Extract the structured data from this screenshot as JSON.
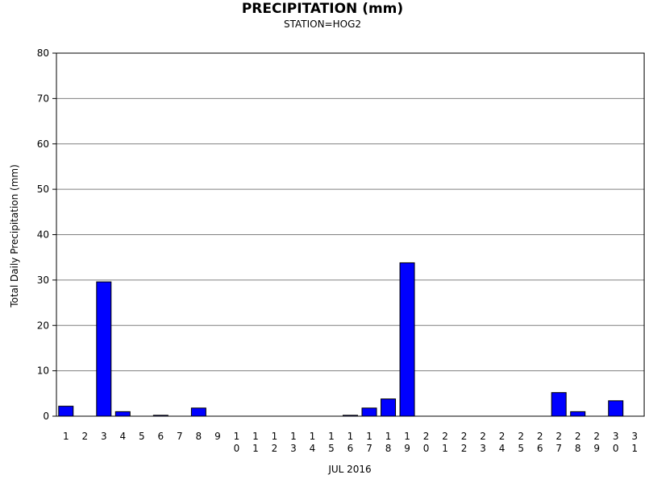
{
  "chart_data": {
    "type": "bar",
    "title": "PRECIPITATION (mm)",
    "subtitle": "STATION=HOG2",
    "xlabel": "JUL 2016",
    "ylabel": "Total Daily Precipitation (mm)",
    "ylim": [
      0,
      80
    ],
    "yticks": [
      0,
      10,
      20,
      30,
      40,
      50,
      60,
      70,
      80
    ],
    "grid": true,
    "bar_color": "#0000ff",
    "categories": [
      "1",
      "2",
      "3",
      "4",
      "5",
      "6",
      "7",
      "8",
      "9",
      "10",
      "11",
      "12",
      "13",
      "14",
      "15",
      "16",
      "17",
      "18",
      "19",
      "20",
      "21",
      "22",
      "23",
      "24",
      "25",
      "26",
      "27",
      "28",
      "29",
      "30",
      "31"
    ],
    "values": [
      2.2,
      0,
      29.6,
      1.0,
      0,
      0.2,
      0,
      1.8,
      0,
      0,
      0,
      0,
      0,
      0,
      0,
      0.2,
      1.8,
      3.8,
      33.8,
      0,
      0,
      0,
      0,
      0,
      0,
      0,
      5.2,
      1.0,
      0,
      3.4,
      0
    ]
  }
}
